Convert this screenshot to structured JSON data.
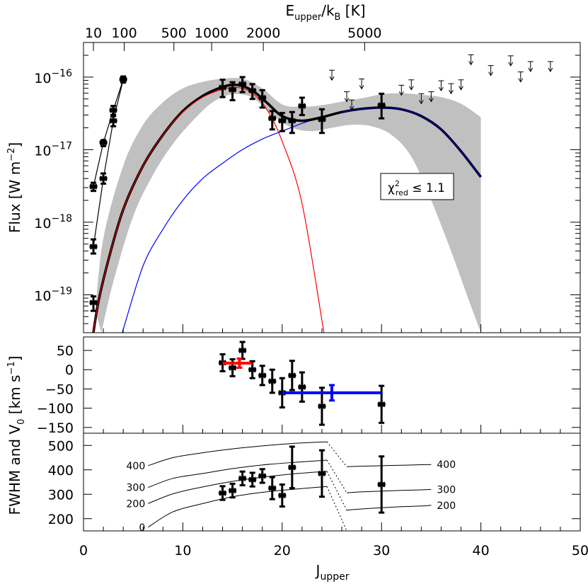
{
  "chart_data": [
    {
      "type": "line",
      "panel": "flux",
      "ylabel": "Flux [W m⁻²]",
      "yscale": "log",
      "ylim": [
        3e-20,
        3e-16
      ],
      "xlim": [
        0,
        50
      ],
      "top_axis_label": "E_upper/k_B [K]",
      "top_ticks": [
        {
          "label": "10",
          "j": 1.0
        },
        {
          "label": "100",
          "j": 4.1
        },
        {
          "label": "500",
          "j": 9.1
        },
        {
          "label": "1000",
          "j": 12.9
        },
        {
          "label": "2000",
          "j": 18.1
        },
        {
          "label": "5000",
          "j": 28.3
        }
      ],
      "yticks": [
        {
          "v": 1e-16,
          "base": "10",
          "exp": "−16"
        },
        {
          "v": 1e-17,
          "base": "10",
          "exp": "−17"
        },
        {
          "v": 1e-18,
          "base": "10",
          "exp": "−18"
        },
        {
          "v": 1e-19,
          "base": "10",
          "exp": "−19"
        }
      ],
      "annotation": "χ²red ≤ 1.1",
      "series": [
        {
          "color": "#000000",
          "x": [
            1,
            2,
            3,
            4
          ],
          "y": [
            3.1e-18,
            1.25e-17,
            3.5e-17,
            9.3e-17
          ]
        },
        {
          "color": "#000000",
          "x": [
            1,
            2,
            3,
            4
          ],
          "y": [
            4.6e-19,
            4e-18,
            2.5e-17,
            9.3e-17
          ]
        },
        {
          "color": "#000000",
          "x": [
            1,
            2,
            3,
            4
          ],
          "y": [
            7.8e-20,
            4e-18,
            2.5e-17,
            9.3e-17
          ],
          "marker": "none",
          "hidden": true
        },
        {
          "color": "#ff0000",
          "x": [
            1.0,
            1.5,
            2.5,
            4,
            6,
            8,
            10,
            12,
            14,
            15.5,
            17,
            18.5,
            20,
            22,
            24.2
          ],
          "y": [
            3e-20,
            8e-20,
            3e-19,
            1.5e-18,
            6e-18,
            1.6e-17,
            3.3e-17,
            5.3e-17,
            6.8e-17,
            7.2e-17,
            6e-17,
            3.5e-17,
            1.3e-17,
            1.8e-18,
            3e-20
          ]
        },
        {
          "color": "#0000ff",
          "x": [
            3.9,
            6,
            8,
            10,
            12,
            14,
            16,
            18,
            20,
            22,
            24,
            26,
            28,
            30,
            32,
            34,
            36,
            38,
            40
          ],
          "y": [
            3e-20,
            2.5e-19,
            8e-19,
            2e-18,
            4e-18,
            6.5e-18,
            1e-17,
            1.4e-17,
            1.8e-17,
            2.3e-17,
            2.8e-17,
            3.3e-17,
            3.65e-17,
            3.8e-17,
            3.6e-17,
            2.9e-17,
            1.9e-17,
            9.5e-18,
            4.2e-18
          ]
        },
        {
          "color": "#000000",
          "x": [
            1.0,
            1.5,
            2.5,
            4,
            6,
            8,
            10,
            12,
            14,
            15.5,
            17,
            18.5,
            20,
            22,
            24,
            26,
            28,
            30,
            32,
            34,
            36,
            38,
            40
          ],
          "y": [
            3e-20,
            8e-20,
            3e-19,
            1.5e-18,
            6e-18,
            1.6e-17,
            3.4e-17,
            5.5e-17,
            7.3e-17,
            7.8e-17,
            6.5e-17,
            4.4e-17,
            2.9e-17,
            2.5e-17,
            2.8e-17,
            3.3e-17,
            3.65e-17,
            3.8e-17,
            3.6e-17,
            2.9e-17,
            1.9e-17,
            9.5e-18,
            4.2e-18
          ]
        }
      ],
      "band_upper": {
        "x": [
          1.2,
          2,
          4,
          6,
          8,
          10,
          12,
          14,
          16,
          18,
          20,
          22,
          24,
          26,
          28,
          30,
          32,
          34,
          36,
          38,
          40
        ],
        "y": [
          6e-20,
          6e-19,
          6e-18,
          2.2e-17,
          4.5e-17,
          7e-17,
          8.6e-17,
          9.5e-17,
          9.5e-17,
          7e-17,
          4.2e-17,
          3.9e-17,
          4.1e-17,
          4.6e-17,
          5.1e-17,
          5.8e-17,
          6e-17,
          5.7e-17,
          5.3e-17,
          4.3e-17,
          2.8e-17
        ]
      },
      "band_lower": {
        "x": [
          1.8,
          3,
          5,
          7,
          9,
          11,
          13,
          15,
          17,
          19,
          21,
          23,
          25,
          27,
          29,
          31,
          33,
          35,
          37,
          39,
          40
        ],
        "y": [
          3e-20,
          1.5e-19,
          1.2e-18,
          4.5e-18,
          1.2e-17,
          2.5e-17,
          4.5e-17,
          5.8e-17,
          5.2e-17,
          3e-17,
          2e-17,
          1.8e-17,
          2e-17,
          2.2e-17,
          2.1e-17,
          1.6e-17,
          8e-18,
          2e-18,
          4e-19,
          7e-20,
          3e-20
        ]
      },
      "points": [
        {
          "x": 1,
          "y": 3.1e-18,
          "lo": 2.7e-18,
          "hi": 3.5e-18
        },
        {
          "x": 1,
          "y": 4.6e-19,
          "lo": 3.7e-19,
          "hi": 5.8e-19
        },
        {
          "x": 1,
          "y": 7.8e-20,
          "lo": 6e-20,
          "hi": 9.5e-20
        },
        {
          "x": 2,
          "y": 1.25e-17,
          "lo": 1.12e-17,
          "hi": 1.35e-17
        },
        {
          "x": 2,
          "y": 4e-18,
          "lo": 3.4e-18,
          "hi": 4.7e-18
        },
        {
          "x": 3,
          "y": 3.5e-17,
          "lo": 3e-17,
          "hi": 4e-17
        },
        {
          "x": 3,
          "y": 2.5e-17,
          "lo": 2.1e-17,
          "hi": 2.9e-17
        },
        {
          "x": 4,
          "y": 9.3e-17,
          "lo": 8.4e-17,
          "hi": 1.02e-16
        },
        {
          "x": 14,
          "y": 7.2e-17,
          "lo": 5.3e-17,
          "hi": 9.2e-17
        },
        {
          "x": 15,
          "y": 6.7e-17,
          "lo": 4.8e-17,
          "hi": 8.5e-17
        },
        {
          "x": 16,
          "y": 8e-17,
          "lo": 6.2e-17,
          "hi": 1e-16
        },
        {
          "x": 17,
          "y": 6.5e-17,
          "lo": 5e-17,
          "hi": 8e-17
        },
        {
          "x": 18,
          "y": 5.2e-17,
          "lo": 3.8e-17,
          "hi": 6.6e-17
        },
        {
          "x": 19,
          "y": 2.7e-17,
          "lo": 1.9e-17,
          "hi": 3.4e-17
        },
        {
          "x": 20,
          "y": 2.5e-17,
          "lo": 1.8e-17,
          "hi": 3.2e-17
        },
        {
          "x": 21,
          "y": 2.5e-17,
          "lo": 1.7e-17,
          "hi": 3.3e-17
        },
        {
          "x": 22,
          "y": 4e-17,
          "lo": 3e-17,
          "hi": 5.2e-17
        },
        {
          "x": 24,
          "y": 2.6e-17,
          "lo": 1.7e-17,
          "hi": 3.6e-17
        },
        {
          "x": 30,
          "y": 4.1e-17,
          "lo": 2.7e-17,
          "hi": 5.9e-17
        }
      ],
      "upper_limits": [
        {
          "x": 25,
          "y": 9.5e-17
        },
        {
          "x": 26.5,
          "y": 4.8e-17
        },
        {
          "x": 27,
          "y": 3.7e-17
        },
        {
          "x": 28,
          "y": 7.2e-17
        },
        {
          "x": 32,
          "y": 5.9e-17
        },
        {
          "x": 33,
          "y": 7e-17
        },
        {
          "x": 34,
          "y": 4.5e-17
        },
        {
          "x": 35,
          "y": 4.8e-17
        },
        {
          "x": 36,
          "y": 6.8e-17
        },
        {
          "x": 37,
          "y": 6.2e-17
        },
        {
          "x": 38,
          "y": 7e-17
        },
        {
          "x": 39,
          "y": 1.55e-16
        },
        {
          "x": 41,
          "y": 1.1e-16
        },
        {
          "x": 43,
          "y": 1.5e-16
        },
        {
          "x": 44,
          "y": 9e-17
        },
        {
          "x": 45,
          "y": 1.25e-16
        },
        {
          "x": 47,
          "y": 1.25e-16
        }
      ]
    },
    {
      "type": "scatter",
      "panel": "velocity",
      "ylim": [
        -165,
        85
      ],
      "yticks": [
        50,
        0,
        -50,
        -100,
        -150
      ],
      "ytick_labels": [
        "50",
        "0",
        "−50",
        "−100",
        "−150"
      ],
      "points": [
        {
          "x": 14,
          "y": 18,
          "err": 22
        },
        {
          "x": 15,
          "y": 5,
          "err": 22
        },
        {
          "x": 16,
          "y": 50,
          "err": 22
        },
        {
          "x": 17,
          "y": 0,
          "err": 22
        },
        {
          "x": 18,
          "y": -15,
          "err": 25
        },
        {
          "x": 19,
          "y": -30,
          "err": 30
        },
        {
          "x": 20,
          "y": -60,
          "err": 38
        },
        {
          "x": 21,
          "y": -15,
          "err": 38
        },
        {
          "x": 22,
          "y": -45,
          "err": 38
        },
        {
          "x": 24,
          "y": -95,
          "err": 48
        },
        {
          "x": 30,
          "y": -90,
          "err": 48
        }
      ],
      "mean_red": {
        "x0": 14,
        "x1": 17,
        "y": 17,
        "xc": 15.7,
        "err": 12
      },
      "mean_blue": {
        "x0": 20,
        "x1": 30,
        "y": -60,
        "xc": 25,
        "err": 20
      }
    },
    {
      "type": "line",
      "panel": "fwhm",
      "ylim": [
        150,
        550
      ],
      "yticks": [
        500,
        400,
        300,
        200
      ],
      "xlabel": "J_upper",
      "xticks": [
        0,
        10,
        20,
        30,
        40,
        50
      ],
      "shared_ylabel": "FWHM and V₀ [km s⁻¹]",
      "points": [
        {
          "x": 14,
          "y": 305,
          "err": 28
        },
        {
          "x": 15,
          "y": 315,
          "err": 28
        },
        {
          "x": 16,
          "y": 365,
          "err": 28
        },
        {
          "x": 17,
          "y": 360,
          "err": 28
        },
        {
          "x": 18,
          "y": 375,
          "err": 28
        },
        {
          "x": 19,
          "y": 325,
          "err": 45
        },
        {
          "x": 20,
          "y": 295,
          "err": 45
        },
        {
          "x": 21,
          "y": 410,
          "err": 85
        },
        {
          "x": 24,
          "y": 385,
          "err": 95
        },
        {
          "x": 30,
          "y": 340,
          "err": 115
        }
      ],
      "curves_left": [
        {
          "label": "0",
          "x": [
            6.5,
            9,
            12,
            15,
            18,
            21,
            24.5
          ],
          "y": [
            165,
            228,
            262,
            290,
            308,
            320,
            332
          ]
        },
        {
          "label": "200",
          "x": [
            6.5,
            9,
            12,
            15,
            18,
            21,
            24.5
          ],
          "y": [
            262,
            302,
            330,
            353,
            370,
            383,
            394
          ]
        },
        {
          "label": "300",
          "x": [
            6.5,
            9,
            12,
            15,
            18,
            21,
            24.5
          ],
          "y": [
            328,
            365,
            385,
            405,
            420,
            430,
            440
          ]
        },
        {
          "label": "400",
          "x": [
            6.5,
            9,
            12,
            15,
            18,
            21,
            24.5
          ],
          "y": [
            417,
            450,
            470,
            486,
            498,
            508,
            515
          ]
        }
      ],
      "curves_right": [
        {
          "label": "400",
          "x": [
            26.5,
            28,
            30,
            32,
            34,
            35
          ],
          "y": [
            413,
            415,
            417,
            419,
            421,
            422
          ]
        },
        {
          "label": "300",
          "x": [
            26.5,
            28,
            30,
            32,
            34,
            35
          ],
          "y": [
            306,
            310,
            313,
            316,
            318,
            320
          ]
        },
        {
          "label": "200",
          "x": [
            26.5,
            28,
            30,
            32,
            34,
            35
          ],
          "y": [
            235,
            240,
            245,
            249,
            252,
            255
          ]
        }
      ],
      "dotted": [
        {
          "x": [
            24.5,
            26.5
          ],
          "y": [
            515,
            413
          ]
        },
        {
          "x": [
            24.5,
            26.5
          ],
          "y": [
            440,
            306
          ]
        },
        {
          "x": [
            24.5,
            26.5
          ],
          "y": [
            394,
            235
          ]
        },
        {
          "x": [
            24.5,
            26.5
          ],
          "y": [
            332,
            150
          ]
        }
      ]
    }
  ]
}
